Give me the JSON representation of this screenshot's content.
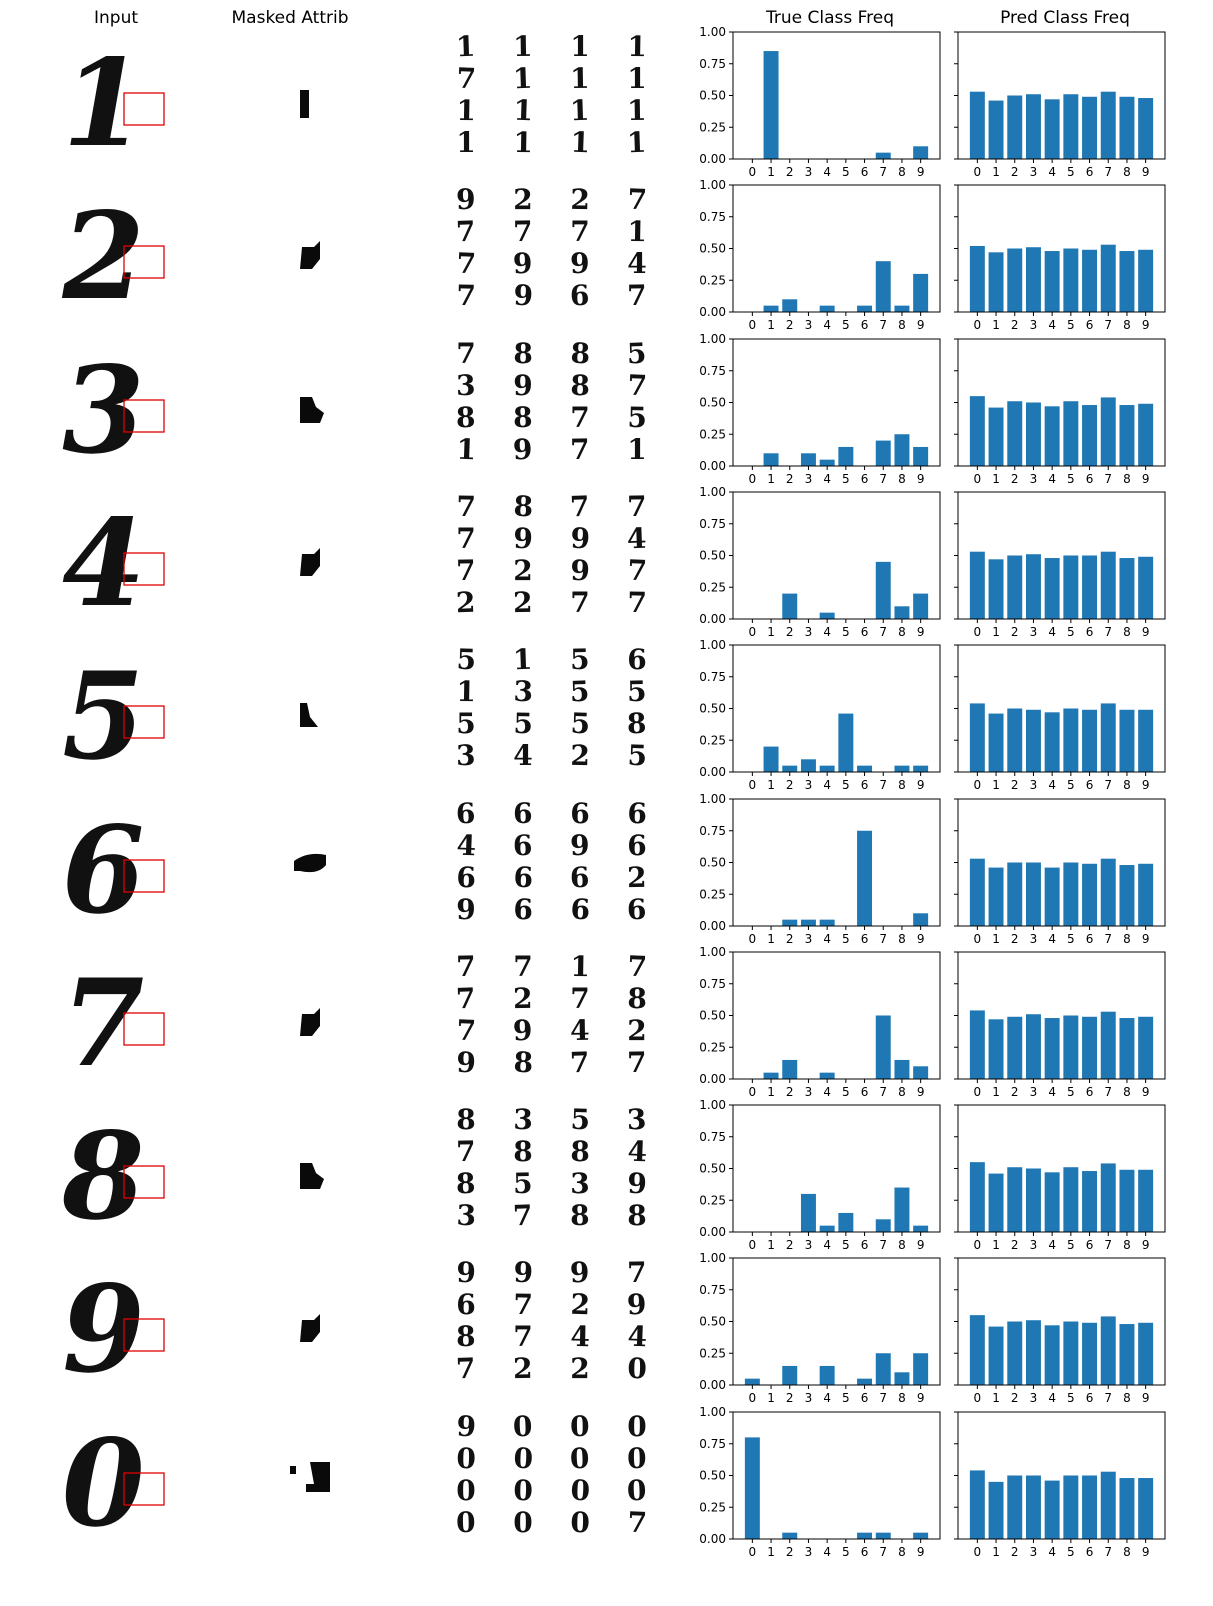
{
  "headers": {
    "input": "Input",
    "masked": "Masked Attrib",
    "true_freq": "True Class Freq",
    "pred_freq": "Pred Class Freq"
  },
  "bar_color": "#1f77b4",
  "box_color": "#e00000",
  "samples": [
    {
      "digit": "1",
      "masked_shape": "bar",
      "grid": [
        [
          "1",
          "1",
          "1",
          "1"
        ],
        [
          "7",
          "1",
          "1",
          "1"
        ],
        [
          "1",
          "1",
          "1",
          "1"
        ],
        [
          "1",
          "1",
          "1",
          "1"
        ]
      ]
    },
    {
      "digit": "2",
      "masked_shape": "wedge",
      "grid": [
        [
          "9",
          "2",
          "2",
          "7"
        ],
        [
          "7",
          "7",
          "7",
          "1"
        ],
        [
          "7",
          "9",
          "9",
          "4"
        ],
        [
          "7",
          "9",
          "6",
          "7"
        ]
      ]
    },
    {
      "digit": "3",
      "masked_shape": "blob",
      "grid": [
        [
          "7",
          "8",
          "8",
          "5"
        ],
        [
          "3",
          "9",
          "8",
          "7"
        ],
        [
          "8",
          "8",
          "7",
          "5"
        ],
        [
          "1",
          "9",
          "7",
          "1"
        ]
      ]
    },
    {
      "digit": "4",
      "masked_shape": "wedge",
      "grid": [
        [
          "7",
          "8",
          "7",
          "7"
        ],
        [
          "7",
          "9",
          "9",
          "4"
        ],
        [
          "7",
          "2",
          "9",
          "7"
        ],
        [
          "2",
          "2",
          "7",
          "7"
        ]
      ]
    },
    {
      "digit": "5",
      "masked_shape": "small",
      "grid": [
        [
          "5",
          "1",
          "5",
          "6"
        ],
        [
          "1",
          "3",
          "5",
          "5"
        ],
        [
          "5",
          "5",
          "5",
          "8"
        ],
        [
          "3",
          "4",
          "2",
          "5"
        ]
      ]
    },
    {
      "digit": "6",
      "masked_shape": "loop",
      "grid": [
        [
          "6",
          "6",
          "6",
          "6"
        ],
        [
          "4",
          "6",
          "9",
          "6"
        ],
        [
          "6",
          "6",
          "6",
          "2"
        ],
        [
          "9",
          "6",
          "6",
          "6"
        ]
      ]
    },
    {
      "digit": "7",
      "masked_shape": "wedge",
      "grid": [
        [
          "7",
          "7",
          "1",
          "7"
        ],
        [
          "7",
          "2",
          "7",
          "8"
        ],
        [
          "7",
          "9",
          "4",
          "2"
        ],
        [
          "9",
          "8",
          "7",
          "7"
        ]
      ]
    },
    {
      "digit": "8",
      "masked_shape": "blob",
      "grid": [
        [
          "8",
          "3",
          "5",
          "3"
        ],
        [
          "7",
          "8",
          "8",
          "4"
        ],
        [
          "8",
          "5",
          "3",
          "9"
        ],
        [
          "3",
          "7",
          "8",
          "8"
        ]
      ]
    },
    {
      "digit": "9",
      "masked_shape": "wedge",
      "grid": [
        [
          "9",
          "9",
          "9",
          "7"
        ],
        [
          "6",
          "7",
          "2",
          "9"
        ],
        [
          "8",
          "7",
          "4",
          "4"
        ],
        [
          "7",
          "2",
          "2",
          "0"
        ]
      ]
    },
    {
      "digit": "0",
      "masked_shape": "split",
      "grid": [
        [
          "9",
          "0",
          "0",
          "0"
        ],
        [
          "0",
          "0",
          "0",
          "0"
        ],
        [
          "0",
          "0",
          "0",
          "0"
        ],
        [
          "0",
          "0",
          "0",
          "7"
        ]
      ]
    }
  ],
  "chart_data": [
    {
      "type": "bar",
      "title": "True Class Freq",
      "row": 1,
      "categories": [
        "0",
        "1",
        "2",
        "3",
        "4",
        "5",
        "6",
        "7",
        "8",
        "9"
      ],
      "values": [
        0,
        0.85,
        0,
        0,
        0,
        0,
        0,
        0.05,
        0,
        0.1
      ],
      "ylim": [
        0,
        1
      ],
      "yticks": [
        "0.00",
        "0.25",
        "0.50",
        "0.75",
        "1.00"
      ]
    },
    {
      "type": "bar",
      "title": "Pred Class Freq",
      "row": 1,
      "categories": [
        "0",
        "1",
        "2",
        "3",
        "4",
        "5",
        "6",
        "7",
        "8",
        "9"
      ],
      "values": [
        0.53,
        0.46,
        0.5,
        0.51,
        0.47,
        0.51,
        0.49,
        0.53,
        0.49,
        0.48
      ],
      "ylim": [
        0,
        1
      ]
    },
    {
      "type": "bar",
      "row": 2,
      "categories": [
        "0",
        "1",
        "2",
        "3",
        "4",
        "5",
        "6",
        "7",
        "8",
        "9"
      ],
      "values": [
        0,
        0.05,
        0.1,
        0,
        0.05,
        0,
        0.05,
        0.4,
        0.05,
        0.3
      ],
      "ylim": [
        0,
        1
      ],
      "yticks": [
        "0.00",
        "0.25",
        "0.50",
        "0.75",
        "1.00"
      ]
    },
    {
      "type": "bar",
      "row": 2,
      "categories": [
        "0",
        "1",
        "2",
        "3",
        "4",
        "5",
        "6",
        "7",
        "8",
        "9"
      ],
      "values": [
        0.52,
        0.47,
        0.5,
        0.51,
        0.48,
        0.5,
        0.49,
        0.53,
        0.48,
        0.49
      ],
      "ylim": [
        0,
        1
      ]
    },
    {
      "type": "bar",
      "row": 3,
      "categories": [
        "0",
        "1",
        "2",
        "3",
        "4",
        "5",
        "6",
        "7",
        "8",
        "9"
      ],
      "values": [
        0,
        0.1,
        0,
        0.1,
        0.05,
        0.15,
        0,
        0.2,
        0.25,
        0.15
      ],
      "ylim": [
        0,
        1
      ],
      "yticks": [
        "0.00",
        "0.25",
        "0.50",
        "0.75",
        "1.00"
      ]
    },
    {
      "type": "bar",
      "row": 3,
      "categories": [
        "0",
        "1",
        "2",
        "3",
        "4",
        "5",
        "6",
        "7",
        "8",
        "9"
      ],
      "values": [
        0.55,
        0.46,
        0.51,
        0.5,
        0.47,
        0.51,
        0.48,
        0.54,
        0.48,
        0.49
      ],
      "ylim": [
        0,
        1
      ]
    },
    {
      "type": "bar",
      "row": 4,
      "categories": [
        "0",
        "1",
        "2",
        "3",
        "4",
        "5",
        "6",
        "7",
        "8",
        "9"
      ],
      "values": [
        0,
        0,
        0.2,
        0,
        0.05,
        0,
        0,
        0.45,
        0.1,
        0.2
      ],
      "ylim": [
        0,
        1
      ],
      "yticks": [
        "0.00",
        "0.25",
        "0.50",
        "0.75",
        "1.00"
      ]
    },
    {
      "type": "bar",
      "row": 4,
      "categories": [
        "0",
        "1",
        "2",
        "3",
        "4",
        "5",
        "6",
        "7",
        "8",
        "9"
      ],
      "values": [
        0.53,
        0.47,
        0.5,
        0.51,
        0.48,
        0.5,
        0.5,
        0.53,
        0.48,
        0.49
      ],
      "ylim": [
        0,
        1
      ]
    },
    {
      "type": "bar",
      "row": 5,
      "categories": [
        "0",
        "1",
        "2",
        "3",
        "4",
        "5",
        "6",
        "7",
        "8",
        "9"
      ],
      "values": [
        0,
        0.2,
        0.05,
        0.1,
        0.05,
        0.46,
        0.05,
        0,
        0.05,
        0.05
      ],
      "ylim": [
        0,
        1
      ],
      "yticks": [
        "0.00",
        "0.25",
        "0.50",
        "0.75",
        "1.00"
      ]
    },
    {
      "type": "bar",
      "row": 5,
      "categories": [
        "0",
        "1",
        "2",
        "3",
        "4",
        "5",
        "6",
        "7",
        "8",
        "9"
      ],
      "values": [
        0.54,
        0.46,
        0.5,
        0.49,
        0.47,
        0.5,
        0.49,
        0.54,
        0.49,
        0.49
      ],
      "ylim": [
        0,
        1
      ]
    },
    {
      "type": "bar",
      "row": 6,
      "categories": [
        "0",
        "1",
        "2",
        "3",
        "4",
        "5",
        "6",
        "7",
        "8",
        "9"
      ],
      "values": [
        0,
        0,
        0.05,
        0.05,
        0.05,
        0,
        0.75,
        0,
        0,
        0.1
      ],
      "ylim": [
        0,
        1
      ],
      "yticks": [
        "0.00",
        "0.25",
        "0.50",
        "0.75",
        "1.00"
      ]
    },
    {
      "type": "bar",
      "row": 6,
      "categories": [
        "0",
        "1",
        "2",
        "3",
        "4",
        "5",
        "6",
        "7",
        "8",
        "9"
      ],
      "values": [
        0.53,
        0.46,
        0.5,
        0.5,
        0.46,
        0.5,
        0.49,
        0.53,
        0.48,
        0.49
      ],
      "ylim": [
        0,
        1
      ]
    },
    {
      "type": "bar",
      "row": 7,
      "categories": [
        "0",
        "1",
        "2",
        "3",
        "4",
        "5",
        "6",
        "7",
        "8",
        "9"
      ],
      "values": [
        0,
        0.05,
        0.15,
        0,
        0.05,
        0,
        0,
        0.5,
        0.15,
        0.1
      ],
      "ylim": [
        0,
        1
      ],
      "yticks": [
        "0.00",
        "0.25",
        "0.50",
        "0.75",
        "1.00"
      ]
    },
    {
      "type": "bar",
      "row": 7,
      "categories": [
        "0",
        "1",
        "2",
        "3",
        "4",
        "5",
        "6",
        "7",
        "8",
        "9"
      ],
      "values": [
        0.54,
        0.47,
        0.49,
        0.51,
        0.48,
        0.5,
        0.49,
        0.53,
        0.48,
        0.49
      ],
      "ylim": [
        0,
        1
      ]
    },
    {
      "type": "bar",
      "row": 8,
      "categories": [
        "0",
        "1",
        "2",
        "3",
        "4",
        "5",
        "6",
        "7",
        "8",
        "9"
      ],
      "values": [
        0,
        0,
        0,
        0.3,
        0.05,
        0.15,
        0,
        0.1,
        0.35,
        0.05
      ],
      "ylim": [
        0,
        1
      ],
      "yticks": [
        "0.00",
        "0.25",
        "0.50",
        "0.75",
        "1.00"
      ]
    },
    {
      "type": "bar",
      "row": 8,
      "categories": [
        "0",
        "1",
        "2",
        "3",
        "4",
        "5",
        "6",
        "7",
        "8",
        "9"
      ],
      "values": [
        0.55,
        0.46,
        0.51,
        0.5,
        0.47,
        0.51,
        0.48,
        0.54,
        0.49,
        0.49
      ],
      "ylim": [
        0,
        1
      ]
    },
    {
      "type": "bar",
      "row": 9,
      "categories": [
        "0",
        "1",
        "2",
        "3",
        "4",
        "5",
        "6",
        "7",
        "8",
        "9"
      ],
      "values": [
        0.05,
        0,
        0.15,
        0,
        0.15,
        0,
        0.05,
        0.25,
        0.1,
        0.25
      ],
      "ylim": [
        0,
        1
      ],
      "yticks": [
        "0.00",
        "0.25",
        "0.50",
        "0.75",
        "1.00"
      ]
    },
    {
      "type": "bar",
      "row": 9,
      "categories": [
        "0",
        "1",
        "2",
        "3",
        "4",
        "5",
        "6",
        "7",
        "8",
        "9"
      ],
      "values": [
        0.55,
        0.46,
        0.5,
        0.51,
        0.47,
        0.5,
        0.49,
        0.54,
        0.48,
        0.49
      ],
      "ylim": [
        0,
        1
      ]
    },
    {
      "type": "bar",
      "row": 10,
      "categories": [
        "0",
        "1",
        "2",
        "3",
        "4",
        "5",
        "6",
        "7",
        "8",
        "9"
      ],
      "values": [
        0.8,
        0,
        0.05,
        0,
        0,
        0,
        0.05,
        0.05,
        0,
        0.05
      ],
      "ylim": [
        0,
        1
      ],
      "yticks": [
        "0.00",
        "0.25",
        "0.50",
        "0.75",
        "1.00"
      ]
    },
    {
      "type": "bar",
      "row": 10,
      "categories": [
        "0",
        "1",
        "2",
        "3",
        "4",
        "5",
        "6",
        "7",
        "8",
        "9"
      ],
      "values": [
        0.54,
        0.45,
        0.5,
        0.5,
        0.46,
        0.5,
        0.5,
        0.53,
        0.48,
        0.48
      ],
      "ylim": [
        0,
        1
      ]
    }
  ]
}
